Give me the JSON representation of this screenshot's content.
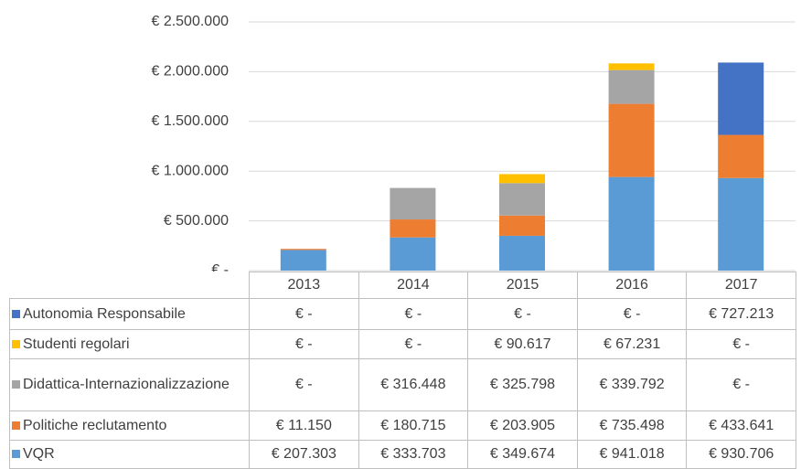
{
  "chart_data": {
    "type": "stacked-bar",
    "categories": [
      "2013",
      "2014",
      "2015",
      "2016",
      "2017"
    ],
    "series": [
      {
        "name": "Autonomia Responsabile",
        "color": "#4472c4",
        "values": [
          0,
          0,
          0,
          0,
          727213
        ],
        "value_labels": [
          "€ -",
          "€ -",
          "€ -",
          "€ -",
          "€ 727.213"
        ]
      },
      {
        "name": "Studenti regolari",
        "color": "#ffc000",
        "values": [
          0,
          0,
          90617,
          67231,
          0
        ],
        "value_labels": [
          "€ -",
          "€ -",
          "€ 90.617",
          "€ 67.231",
          "€ -"
        ]
      },
      {
        "name": "Didattica-Internazionalizzazione",
        "color": "#a5a5a5",
        "values": [
          0,
          316448,
          325798,
          339792,
          0
        ],
        "value_labels": [
          "€ -",
          "€ 316.448",
          "€ 325.798",
          "€ 339.792",
          "€ -"
        ]
      },
      {
        "name": "Politiche reclutamento",
        "color": "#ed7d31",
        "values": [
          11150,
          180715,
          203905,
          735498,
          433641
        ],
        "value_labels": [
          "€ 11.150",
          "€ 180.715",
          "€ 203.905",
          "€ 735.498",
          "€ 433.641"
        ]
      },
      {
        "name": "VQR",
        "color": "#5b9bd5",
        "values": [
          207303,
          333703,
          349674,
          941018,
          930706
        ],
        "value_labels": [
          "€ 207.303",
          "€ 333.703",
          "€ 349.674",
          "€ 941.018",
          "€ 930.706"
        ]
      }
    ],
    "ylim": [
      0,
      2500000
    ],
    "yticks": [
      {
        "value": 0,
        "label": "€ -"
      },
      {
        "value": 500000,
        "label": "€ 500.000"
      },
      {
        "value": 1000000,
        "label": "€ 1.000.000"
      },
      {
        "value": 1500000,
        "label": "€ 1.500.000"
      },
      {
        "value": 2000000,
        "label": "€ 2.000.000"
      },
      {
        "value": 2500000,
        "label": "€ 2.500.000"
      }
    ],
    "grid": true
  }
}
